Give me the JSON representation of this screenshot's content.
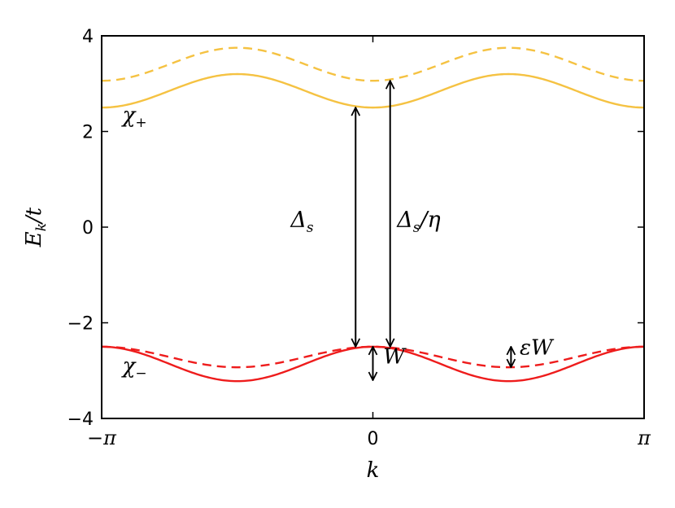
{
  "chart_data": {
    "type": "line",
    "title": "",
    "xlabel": "k",
    "ylabel": "E_k/t",
    "ylabel_parts": {
      "main": "E",
      "sub": "k",
      "rest": "/t"
    },
    "xlim": [
      -3.14159265,
      3.14159265
    ],
    "ylim": [
      -4,
      4
    ],
    "grid": false,
    "x_ticks": [
      {
        "value": -3.14159265,
        "label": "−π"
      },
      {
        "value": 0,
        "label": "0"
      },
      {
        "value": 3.14159265,
        "label": "π"
      }
    ],
    "y_ticks": [
      {
        "value": -4,
        "label": "−4"
      },
      {
        "value": -2,
        "label": "−2"
      },
      {
        "value": 0,
        "label": "0"
      },
      {
        "value": 2,
        "label": "2"
      },
      {
        "value": 4,
        "label": "4"
      }
    ],
    "series": [
      {
        "band": "chi_plus",
        "style": "solid",
        "color": "#f5c242",
        "center": 2.85,
        "amplitude": -0.35
      },
      {
        "band": "chi_plus",
        "style": "dashed",
        "color": "#f5c242",
        "center": 3.405,
        "amplitude": -0.345
      },
      {
        "band": "chi_minus",
        "style": "solid",
        "color": "#ee1c1c",
        "center": -2.86,
        "amplitude": 0.36
      },
      {
        "band": "chi_minus",
        "style": "dashed",
        "color": "#ee1c1c",
        "center": -2.715,
        "amplitude": 0.215
      }
    ],
    "annotations": {
      "chi_plus": {
        "main": "χ",
        "sub": "+",
        "x": -2.9,
        "y": 2.2
      },
      "chi_minus": {
        "main": "χ",
        "sub": "−",
        "x": -2.9,
        "y": -3.05
      },
      "delta_s": {
        "main": "Δ",
        "sub": "s",
        "arrow_x": -0.2,
        "y_from": -2.5,
        "y_to": 2.5,
        "label_x": -0.5,
        "label_y": 0.0
      },
      "delta_s_eta": {
        "main": "Δ",
        "sub": "s",
        "rest": "/η",
        "arrow_x": 0.2,
        "y_from": -2.5,
        "y_to": 3.06,
        "label_x": 0.28,
        "label_y": 0.0
      },
      "W": {
        "label": "W",
        "arrow_x": 0.0,
        "y_from": -2.5,
        "y_to": -3.2,
        "label_x": 0.12,
        "label_y": -2.85
      },
      "epsW": {
        "label": "εW",
        "arrow_x": 1.6,
        "y_from": -2.5,
        "y_to": -2.93,
        "label_x": 1.7,
        "label_y": -2.66
      }
    }
  }
}
